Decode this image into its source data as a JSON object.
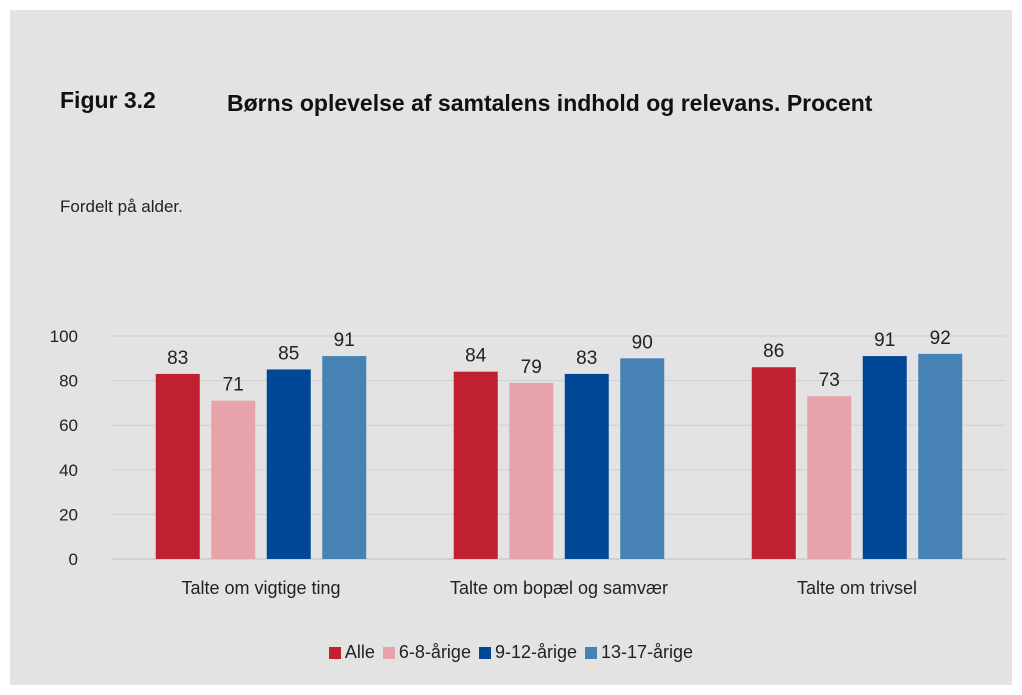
{
  "figure": {
    "number": "Figur 3.2",
    "title": "Børns oplevelse af samtalens indhold og relevans. Procent",
    "subtitle": "Fordelt på alder."
  },
  "chart_data": {
    "type": "bar",
    "categories": [
      "Talte om vigtige ting",
      "Talte om bopæl og samvær",
      "Talte om trivsel"
    ],
    "series": [
      {
        "name": "Alle",
        "color": "#c0202f",
        "values": [
          83,
          84,
          86
        ]
      },
      {
        "name": "6-8-årige",
        "color": "#e8a3aa",
        "values": [
          71,
          79,
          73
        ]
      },
      {
        "name": "9-12-årige",
        "color": "#004896",
        "values": [
          85,
          83,
          91
        ]
      },
      {
        "name": "13-17-årige",
        "color": "#4682b4",
        "values": [
          91,
          90,
          92
        ]
      }
    ],
    "yticks": [
      0,
      20,
      40,
      60,
      80,
      100
    ],
    "ylim": [
      0,
      100
    ],
    "grid": true,
    "legend": "bottom"
  }
}
